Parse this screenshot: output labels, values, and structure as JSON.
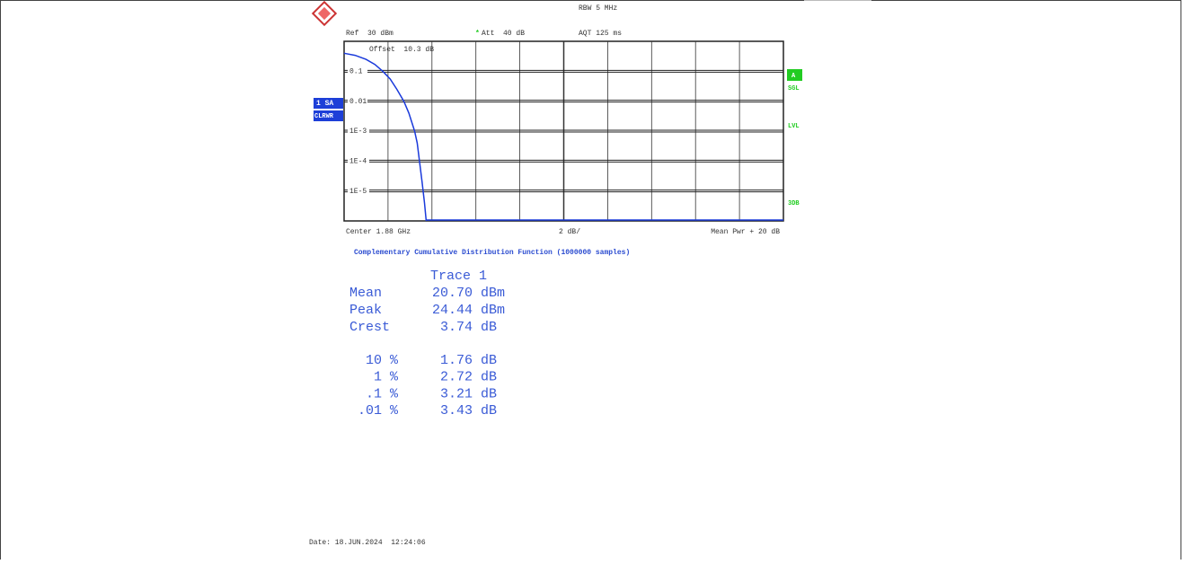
{
  "header": {
    "rbw": "RBW 5 MHz",
    "ref": "Ref  30 dBm",
    "att_marker": "*",
    "att": "Att  40 dB",
    "aqt": "AQT 125 ms",
    "offset": "Offset  10.3 dB"
  },
  "side_left": [
    "1 SA",
    "CLRWR"
  ],
  "side_right": [
    "A",
    "SGL",
    "LVL",
    "3DB"
  ],
  "footer_axis": {
    "center": "Center 1.88 GHz",
    "scale": "2 dB/",
    "span": "Mean Pwr + 20 dB"
  },
  "chart_data": {
    "type": "line",
    "log_y": true,
    "color": "#1a3adb",
    "grid": true,
    "x": [
      0,
      0.5,
      1,
      1.4,
      1.76,
      2.1,
      2.4,
      2.72,
      2.95,
      3.21,
      3.33,
      3.43,
      3.55,
      3.66,
      3.74
    ],
    "values": [
      0.4,
      0.34,
      0.25,
      0.17,
      0.1,
      0.055,
      0.025,
      0.01,
      0.004,
      0.001,
      0.0004,
      0.0001,
      2e-05,
      4e-06,
      1e-06
    ],
    "xlim": [
      0,
      20
    ],
    "ylim": [
      1e-06,
      1
    ],
    "yticks": [
      0.1,
      0.01,
      {
        "value": 0.001,
        "label": "1E-3"
      },
      {
        "value": 0.0001,
        "label": "1E-4"
      },
      {
        "value": 1e-05,
        "label": "1E-5"
      }
    ]
  },
  "stats": {
    "title": "Complementary Cumulative Distribution Function (1000000 samples)",
    "trace": "Trace 1",
    "rows": [
      [
        "Mean",
        "20.70",
        "dBm"
      ],
      [
        "Peak",
        "24.44",
        "dBm"
      ],
      [
        "Crest",
        "3.74",
        "dB"
      ]
    ],
    "percentiles": [
      [
        "10 %",
        "1.76",
        "dB"
      ],
      [
        "1 %",
        "2.72",
        "dB"
      ],
      [
        ".1 %",
        "3.21",
        "dB"
      ],
      [
        ".01 %",
        "3.43",
        "dB"
      ]
    ]
  },
  "date": "Date: 18.JUN.2024  12:24:06"
}
